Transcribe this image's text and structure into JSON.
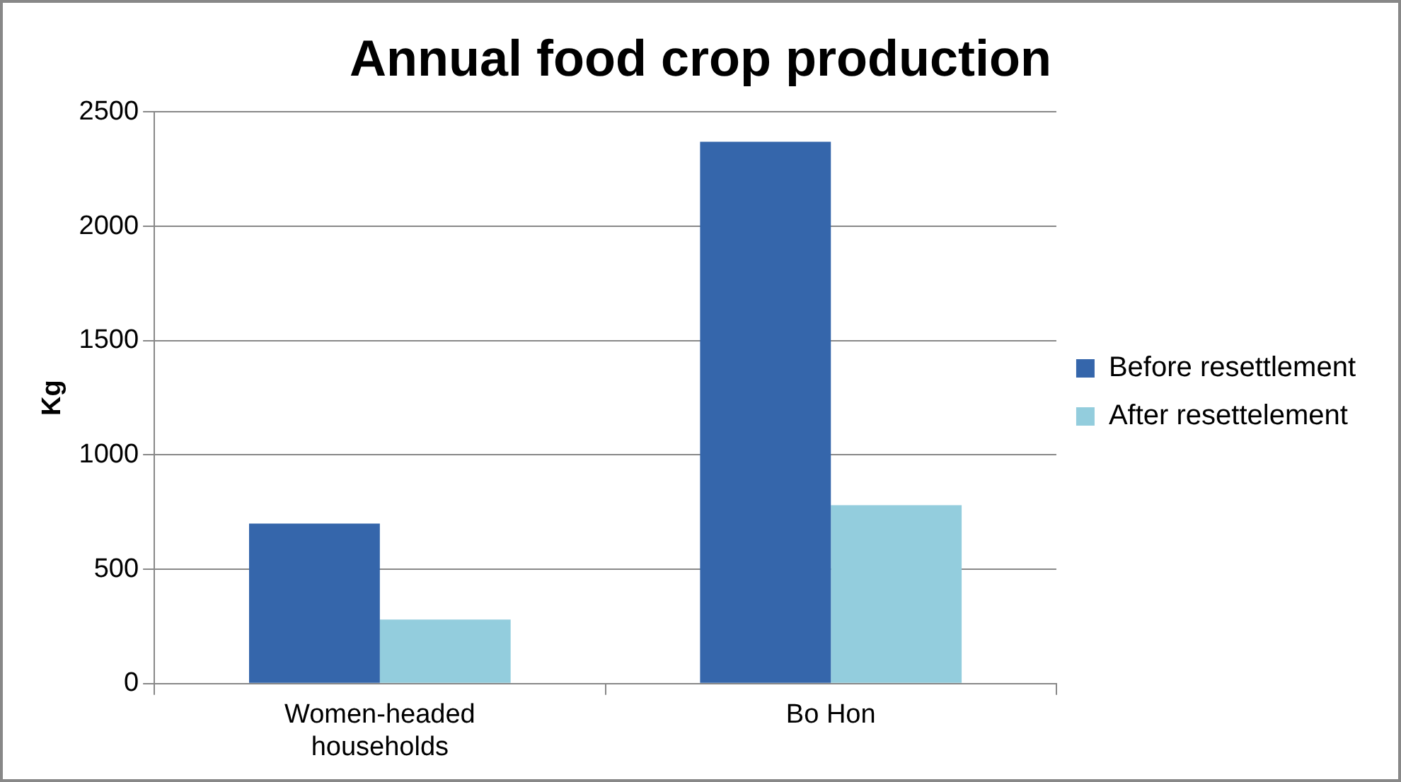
{
  "chart_data": {
    "type": "bar",
    "title": "Annual food crop production",
    "ylabel": "Kg",
    "categories": [
      "Women-headed households",
      "Bo Hon"
    ],
    "series": [
      {
        "name": "Before resettlement",
        "color": "#3566ab",
        "values": [
          700,
          2370
        ]
      },
      {
        "name": "After resettelement",
        "color": "#93cddd",
        "values": [
          280,
          780
        ]
      }
    ],
    "ylim": [
      0,
      2500
    ],
    "yticks": [
      0,
      500,
      1000,
      1500,
      2000,
      2500
    ],
    "grid": "y",
    "legend": "right"
  }
}
